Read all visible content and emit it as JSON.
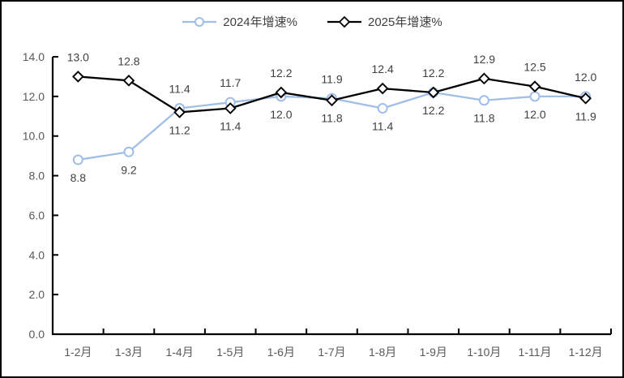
{
  "chart_data": {
    "type": "line",
    "title": "",
    "xlabel": "",
    "ylabel": "",
    "categories": [
      "1-2月",
      "1-3月",
      "1-4月",
      "1-5月",
      "1-6月",
      "1-7月",
      "1-8月",
      "1-9月",
      "1-10月",
      "1-11月",
      "1-12月"
    ],
    "series": [
      {
        "name": "2024年增速%",
        "marker": "circle",
        "color": "#A0BEE6",
        "values": [
          8.8,
          9.2,
          11.4,
          11.7,
          12.0,
          11.9,
          11.4,
          12.2,
          11.8,
          12.0,
          12.0
        ],
        "label_pos": [
          "below",
          "below",
          "above",
          "above",
          "below",
          "above",
          "below",
          "below",
          "below",
          "below",
          "above"
        ]
      },
      {
        "name": "2025年增速%",
        "marker": "diamond",
        "color": "#000000",
        "values": [
          13.0,
          12.8,
          11.2,
          11.4,
          12.2,
          11.8,
          12.4,
          12.2,
          12.9,
          12.5,
          11.9
        ],
        "label_pos": [
          "above",
          "above",
          "below",
          "below",
          "above",
          "below",
          "above",
          "above",
          "above",
          "above",
          "below"
        ]
      }
    ],
    "ylim": [
      0,
      14
    ],
    "ytick_step": 2,
    "ytick_labels": [
      "0.0",
      "2.0",
      "4.0",
      "6.0",
      "8.0",
      "10.0",
      "12.0",
      "14.0"
    ],
    "grid": false,
    "legend_position": "top",
    "label_color": "#404040",
    "tick_label_color": "#595959",
    "axis_color": "#000000"
  }
}
